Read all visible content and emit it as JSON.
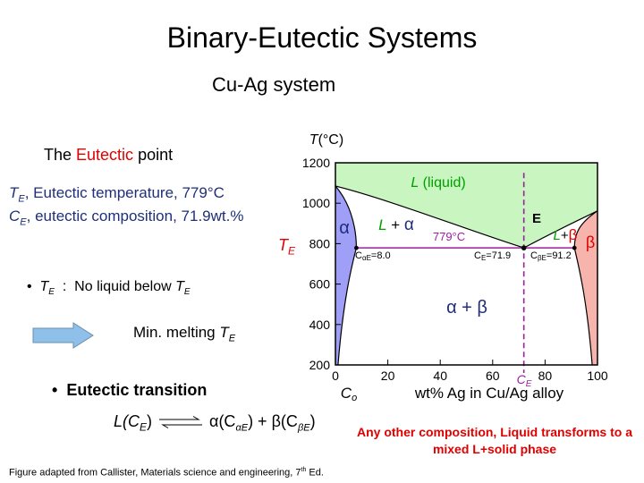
{
  "slide": {
    "title": "Binary-Eutectic Systems",
    "subtitle": "Cu-Ag system",
    "heading_prefix": "The ",
    "heading_emph": "Eutectic",
    "heading_suffix": " point",
    "te_def": {
      "sym": "T",
      "sub": "E",
      "text": ", Eutectic temperature, 779°C"
    },
    "ce_def": {
      "sym": "C",
      "sub": "E",
      "text": ", eutectic composition, 71.9wt.%"
    },
    "te_side": {
      "sym": "T",
      "sub": "E"
    },
    "bullet_te": {
      "sym": "T",
      "sub": "E",
      "text": "  :  No liquid below ",
      "sym2": "T",
      "sub2": "E"
    },
    "min_melt": {
      "text": "Min. melting ",
      "sym": "T",
      "sub": "E"
    },
    "bullet_trans": "Eutectic transition",
    "reaction": {
      "left": "L(C",
      "left_sub": "E",
      "left_close": ")",
      "alpha": "α(C",
      "alpha_sub": "αE",
      "mid": ") + ",
      "beta": "β(C",
      "beta_sub": "βE",
      "end": ")"
    },
    "note": "Any other composition, Liquid transforms to a mixed L+solid phase",
    "caption": "Figure adapted from Callister, Materials science and engineering, 7",
    "caption_sup": "th",
    "caption_end": " Ed."
  },
  "colors": {
    "liquid": "#c9f5c0",
    "alpha": "#9f9ff7",
    "beta": "#f7b4ac",
    "accent": "#e00000",
    "blue": "#1f2f7a",
    "purple": "#9b1f9f",
    "green": "#00a000",
    "arrow": "#8fc0ea"
  },
  "chart_data": {
    "type": "phase-diagram",
    "ylabel": {
      "sym": "T",
      "unit": "(°C)"
    },
    "xlabel": "wt% Ag in Cu/Ag alloy",
    "xlabel_sym": {
      "sym": "C",
      "sub": "o"
    },
    "xlim": [
      0,
      100
    ],
    "ylim": [
      200,
      1200
    ],
    "xticks": [
      "0",
      "20",
      "40",
      "60",
      "80",
      "100"
    ],
    "xtick_values": [
      0,
      20,
      40,
      60,
      80,
      100
    ],
    "yticks": [
      "200",
      "400",
      "600",
      "800",
      "1000",
      "1200"
    ],
    "ytick_values": [
      200,
      400,
      600,
      800,
      1000,
      1200
    ],
    "eutectic_T": 779,
    "eutectic_label": "779°C",
    "eutectic_C": 71.9,
    "alpha_C": 8.0,
    "beta_C": 91.2,
    "cu_melt": 1085,
    "ag_melt": 962,
    "point_label": "E",
    "ce_marker": {
      "sym": "C",
      "sub": "E"
    },
    "labels": {
      "liquid": {
        "sym": "L",
        "text": " (liquid)"
      },
      "alpha": "α",
      "l_alpha": {
        "sym": "L",
        "text": " + ",
        "phase": "α"
      },
      "l_beta": {
        "sym": "L",
        "text": "+",
        "phase": "β"
      },
      "beta": "β",
      "alpha_beta": "α + β",
      "c_alpha": {
        "sym": "C",
        "sub": "αE",
        "text": "=8.0"
      },
      "c_e": {
        "sym": "C",
        "sub": "E",
        "text": "=71.9"
      },
      "c_beta": {
        "sym": "C",
        "sub": "βE",
        "text": "=91.2"
      }
    }
  }
}
